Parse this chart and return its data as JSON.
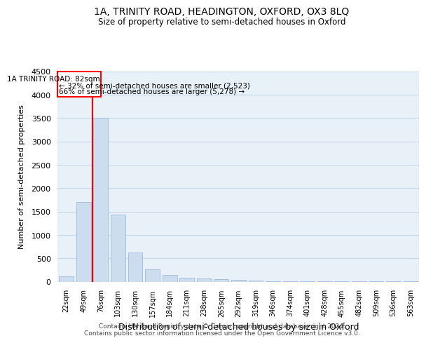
{
  "title": "1A, TRINITY ROAD, HEADINGTON, OXFORD, OX3 8LQ",
  "subtitle": "Size of property relative to semi-detached houses in Oxford",
  "xlabel": "Distribution of semi-detached houses by size in Oxford",
  "ylabel": "Number of semi-detached properties",
  "categories": [
    "22sqm",
    "49sqm",
    "76sqm",
    "103sqm",
    "130sqm",
    "157sqm",
    "184sqm",
    "211sqm",
    "238sqm",
    "265sqm",
    "292sqm",
    "319sqm",
    "346sqm",
    "374sqm",
    "401sqm",
    "428sqm",
    "455sqm",
    "482sqm",
    "509sqm",
    "536sqm",
    "563sqm"
  ],
  "values": [
    110,
    1700,
    3500,
    1430,
    620,
    270,
    150,
    90,
    75,
    55,
    40,
    20,
    10,
    8,
    5,
    4,
    3,
    2,
    2,
    1,
    1
  ],
  "bar_color": "#ccddf0",
  "bar_edge_color": "#a8c0dc",
  "grid_color": "#c8d8ec",
  "background_color": "#e8f0f8",
  "annotation_line1": "1A TRINITY ROAD: 82sqm",
  "annotation_line2": "← 32% of semi-detached houses are smaller (2,523)",
  "annotation_line3": "66% of semi-detached houses are larger (5,278) →",
  "red_line_bin": 1.5,
  "ylim": [
    0,
    4500
  ],
  "yticks": [
    0,
    500,
    1000,
    1500,
    2000,
    2500,
    3000,
    3500,
    4000,
    4500
  ],
  "footer_line1": "Contains HM Land Registry data © Crown copyright and database right 2024.",
  "footer_line2": "Contains public sector information licensed under the Open Government Licence v3.0."
}
